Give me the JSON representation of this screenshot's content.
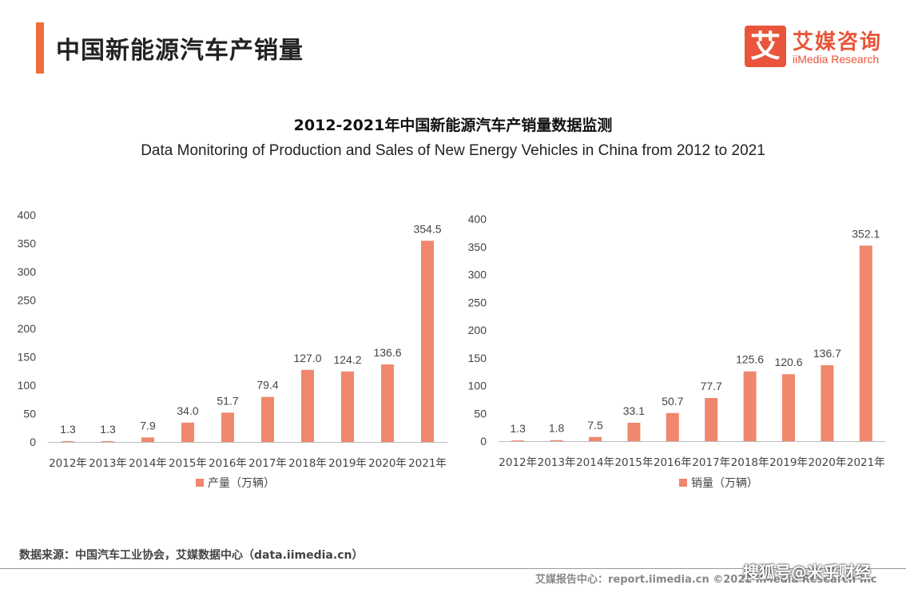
{
  "header": {
    "title": "中国新能源汽车产销量"
  },
  "logo": {
    "mark": "艾",
    "name_cn": "艾媒咨询",
    "name_en": "iiMedia Research"
  },
  "titles": {
    "main": "2012-2021年中国新能源汽车产销量数据监测",
    "sub": "Data Monitoring of Production and Sales of New Energy Vehicles in China from 2012 to 2021"
  },
  "chart_data": [
    {
      "type": "bar",
      "categories": [
        "2012年",
        "2013年",
        "2014年",
        "2015年",
        "2016年",
        "2017年",
        "2018年",
        "2019年",
        "2020年",
        "2021年"
      ],
      "series": [
        {
          "name": "产量（万辆）",
          "values": [
            1.3,
            1.3,
            7.9,
            34.0,
            51.7,
            79.4,
            127.0,
            124.2,
            136.6,
            354.5
          ]
        }
      ],
      "ylim": [
        0,
        400
      ],
      "yticks": [
        0,
        50,
        100,
        150,
        200,
        250,
        300,
        350,
        400
      ],
      "color": "#f0876d",
      "legend": "bottom-center"
    },
    {
      "type": "bar",
      "categories": [
        "2012年",
        "2013年",
        "2014年",
        "2015年",
        "2016年",
        "2017年",
        "2018年",
        "2019年",
        "2020年",
        "2021年"
      ],
      "series": [
        {
          "name": "销量（万辆）",
          "values": [
            1.3,
            1.8,
            7.5,
            33.1,
            50.7,
            77.7,
            125.6,
            120.6,
            136.7,
            352.1
          ]
        }
      ],
      "ylim": [
        0,
        400
      ],
      "yticks": [
        0,
        50,
        100,
        150,
        200,
        250,
        300,
        350,
        400
      ],
      "color": "#f0876d",
      "legend": "bottom-center"
    }
  ],
  "source": "数据来源：中国汽车工业协会，艾媒数据中心（data.iimedia.cn）",
  "footer": "艾媒报告中心：report.iimedia.cn   ©2022  iiMedia Research  Inc",
  "watermark": "搜狐号@米乎财经"
}
